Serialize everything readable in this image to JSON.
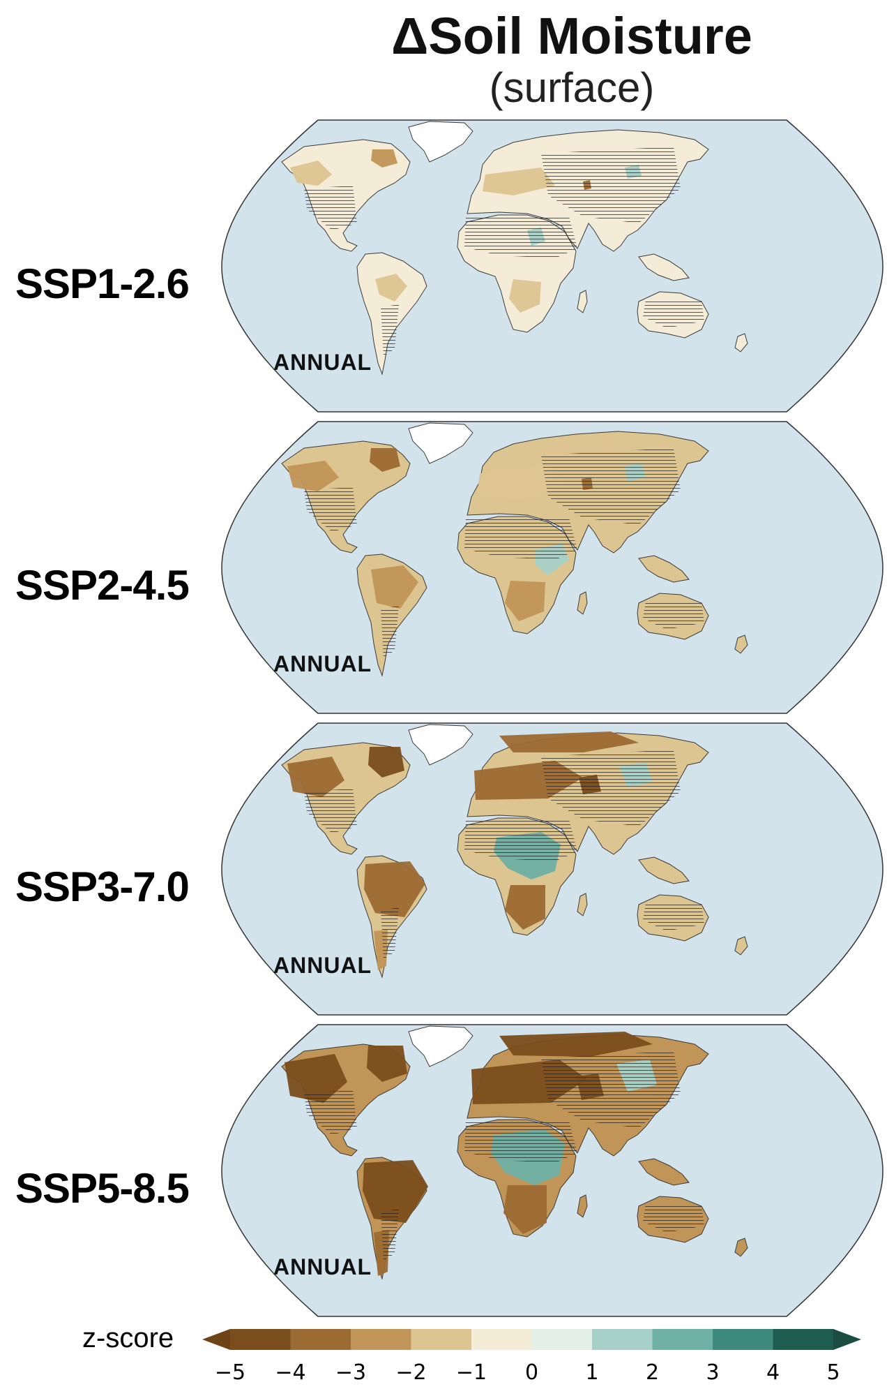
{
  "title": {
    "main": "ΔSoil Moisture",
    "sub": "(surface)"
  },
  "panels": [
    {
      "scenario": "SSP1-2.6",
      "season": "ANNUAL",
      "level": 1
    },
    {
      "scenario": "SSP2-4.5",
      "season": "ANNUAL",
      "level": 2
    },
    {
      "scenario": "SSP3-7.0",
      "season": "ANNUAL",
      "level": 3
    },
    {
      "scenario": "SSP5-8.5",
      "season": "ANNUAL",
      "level": 4
    }
  ],
  "colorbar": {
    "label": "z-score",
    "ticks": [
      "−5",
      "−4",
      "−3",
      "−2",
      "−1",
      "0",
      "1",
      "2",
      "3",
      "4",
      "5"
    ],
    "colors": [
      "#7a4d1c",
      "#9c6a33",
      "#c19557",
      "#ddc591",
      "#f4ecd6",
      "#e3efe9",
      "#a7d1c8",
      "#6fb0a4",
      "#3f8a7e",
      "#1f5c50"
    ],
    "extend_low": "#6e4318",
    "extend_high": "#1d4d42"
  },
  "colors": {
    "ocean": "#d3e3ec",
    "greenland": "#ffffff",
    "hatch": "#222222",
    "outline": "#333333"
  }
}
